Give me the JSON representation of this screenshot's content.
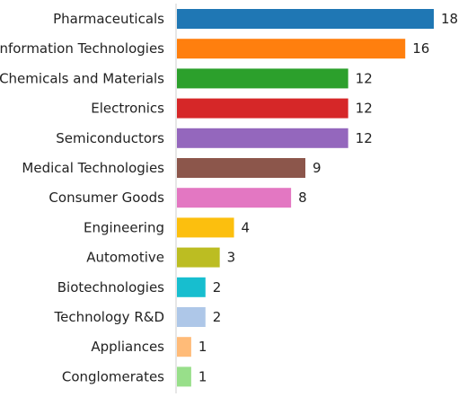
{
  "chart_data": {
    "type": "bar",
    "orientation": "horizontal",
    "categories": [
      "Pharmaceuticals",
      "Information Technologies",
      "Chemicals and Materials",
      "Electronics",
      "Semiconductors",
      "Medical Technologies",
      "Consumer Goods",
      "Engineering",
      "Automotive",
      "Biotechnologies",
      "Technology R&D",
      "Appliances",
      "Conglomerates"
    ],
    "values": [
      18,
      16,
      12,
      12,
      12,
      9,
      8,
      4,
      3,
      2,
      2,
      1,
      1
    ],
    "colors": [
      "#1f77b4",
      "#ff7f0e",
      "#2ca02c",
      "#d62728",
      "#9467bd",
      "#8c564b",
      "#e377c2",
      "#fcbf0e",
      "#bcbd22",
      "#17becf",
      "#aec7e8",
      "#ffbb78",
      "#98df8a"
    ],
    "title": "",
    "xlabel": "",
    "ylabel": "",
    "xlim": [
      0,
      18
    ],
    "grid": false,
    "legend": "none",
    "data_labels": true
  }
}
